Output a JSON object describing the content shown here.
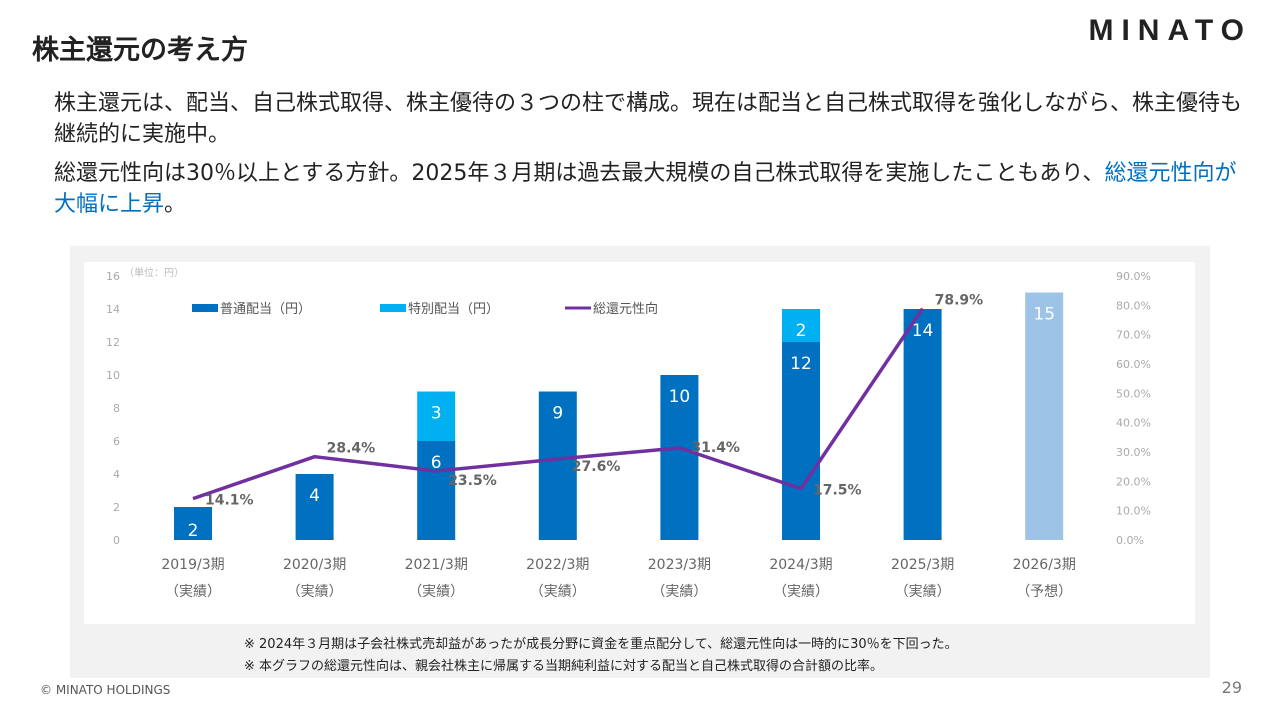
{
  "header": {
    "title": "株主還元の考え方",
    "logo": "MINATO"
  },
  "body": {
    "p1": "株主還元は、配当、自己株式取得、株主優待の３つの柱で構成。現在は配当と自己株式取得を強化しながら、株主優待も継続的に実施中。",
    "p2_a": "総還元性向は30％以上とする方針。2025年３月期は過去最大規模の自己株式取得を実施したこともあり、",
    "p2_hl": "総還元性向が大幅に上昇",
    "p2_b": "。"
  },
  "chart_data": {
    "type": "bar",
    "unit_label": "（単位：円）",
    "categories": [
      "2019/3期",
      "2020/3期",
      "2021/3期",
      "2022/3期",
      "2023/3期",
      "2024/3期",
      "2025/3期",
      "2026/3期"
    ],
    "category_sub": [
      "（実績）",
      "（実績）",
      "（実績）",
      "（実績）",
      "（実績）",
      "（実績）",
      "（実績）",
      "（予想）"
    ],
    "series": [
      {
        "name": "普通配当（円）",
        "color": "#0070c0",
        "values": [
          2,
          4,
          6,
          9,
          10,
          12,
          14,
          15
        ]
      },
      {
        "name": "特別配当（円）",
        "color": "#00b0f0",
        "values": [
          0,
          0,
          3,
          0,
          0,
          2,
          0,
          0
        ]
      },
      {
        "name": "総還元性向",
        "color": "#7030a0",
        "type": "line",
        "values": [
          14.1,
          28.4,
          23.5,
          27.6,
          31.4,
          17.5,
          78.9,
          null
        ]
      }
    ],
    "forecast_color": "#9dc3e6",
    "y_left": {
      "range": [
        0,
        16
      ],
      "ticks": [
        "0",
        "2",
        "4",
        "6",
        "8",
        "10",
        "12",
        "14",
        "16"
      ]
    },
    "y_right": {
      "range": [
        0,
        90
      ],
      "ticks": [
        "0.0%",
        "10.0%",
        "20.0%",
        "30.0%",
        "40.0%",
        "50.0%",
        "60.0%",
        "70.0%",
        "80.0%",
        "90.0%"
      ]
    },
    "pct_labels": [
      "14.1%",
      "28.4%",
      "23.5%",
      "27.6%",
      "31.4%",
      "17.5%",
      "78.9%"
    ],
    "legend": "top"
  },
  "notes": [
    "※ 2024年３月期は子会社株式売却益があったが成長分野に資金を重点配分して、総還元性向は一時的に30％を下回った。",
    "※ 本グラフの総還元性向は、親会社株主に帰属する当期純利益に対する配当と自己株式取得の合計額の比率。"
  ],
  "footer": {
    "copyright": "© MINATO HOLDINGS",
    "page": "29"
  }
}
